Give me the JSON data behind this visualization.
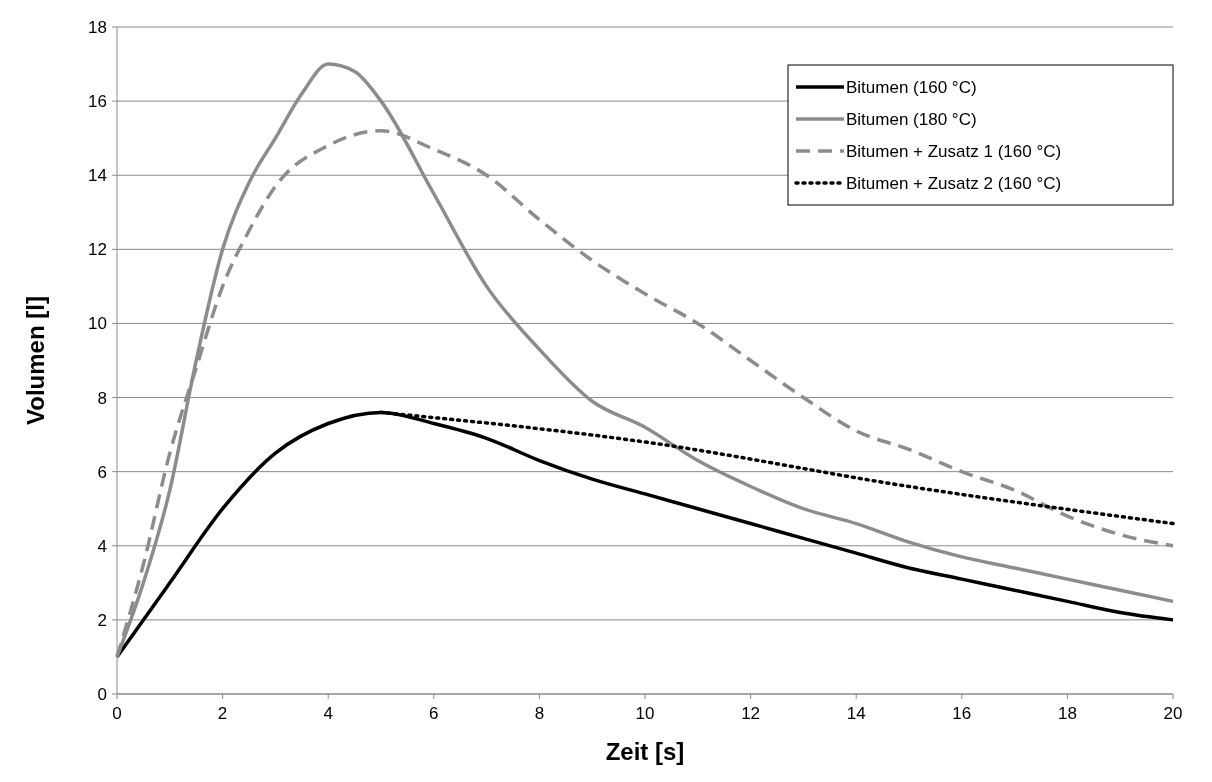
{
  "chart_data": {
    "type": "line",
    "xlabel": "Zeit [s]",
    "ylabel": "Volumen [l]",
    "xlim": [
      0,
      20
    ],
    "xticks": [
      0,
      2,
      4,
      6,
      8,
      10,
      12,
      14,
      16,
      18,
      20
    ],
    "ylim": [
      0,
      18
    ],
    "yticks": [
      0,
      2,
      4,
      6,
      8,
      10,
      12,
      14,
      16,
      18
    ],
    "grid": "y",
    "legend": "top right",
    "marker": "none",
    "series": [
      {
        "name": "Bitumen (160 °C)",
        "color": "#000000",
        "line_style": "solid",
        "x": [
          0,
          1,
          2,
          3,
          4,
          5,
          6,
          7,
          8,
          9,
          10,
          11,
          12,
          13,
          14,
          15,
          16,
          17,
          18,
          19,
          20
        ],
        "values": [
          1,
          3,
          5,
          6.5,
          7.3,
          7.6,
          7.3,
          6.9,
          6.3,
          5.8,
          5.4,
          5.0,
          4.6,
          4.2,
          3.8,
          3.4,
          3.1,
          2.8,
          2.5,
          2.2,
          2.0
        ]
      },
      {
        "name": "Bitumen (180 °C)",
        "color": "#8c8c8c",
        "line_style": "solid",
        "x": [
          0,
          0.5,
          1,
          1.5,
          2,
          2.5,
          3,
          3.5,
          4,
          4.5,
          5,
          6,
          7,
          8,
          9,
          10,
          11,
          12,
          13,
          14,
          15,
          16,
          17,
          18,
          19,
          20
        ],
        "values": [
          1,
          3,
          5.5,
          9,
          12,
          13.8,
          15,
          16.2,
          17,
          16.8,
          16,
          13.5,
          11,
          9.3,
          7.9,
          7.2,
          6.3,
          5.6,
          5.0,
          4.6,
          4.1,
          3.7,
          3.4,
          3.1,
          2.8,
          2.5
        ]
      },
      {
        "name": "Bitumen + Zusatz 1 (160 °C)",
        "color": "#8c8c8c",
        "line_style": "dashed",
        "x": [
          0,
          0.5,
          1,
          1.5,
          2,
          2.5,
          3,
          4,
          5,
          6,
          7,
          8,
          9,
          10,
          11,
          12,
          13,
          14,
          15,
          16,
          17,
          18,
          19,
          20
        ],
        "values": [
          1,
          3.5,
          6.5,
          8.8,
          11,
          12.5,
          13.7,
          14.8,
          15.2,
          14.7,
          14,
          12.8,
          11.7,
          10.8,
          10,
          9,
          8,
          7.1,
          6.6,
          6,
          5.5,
          4.8,
          4.3,
          4
        ]
      },
      {
        "name": "Bitumen + Zusatz 2 (160 °C)",
        "color": "#000000",
        "line_style": "dotted",
        "x": [
          5,
          10,
          15,
          20
        ],
        "values": [
          7.6,
          6.8,
          5.6,
          4.6
        ]
      }
    ]
  }
}
